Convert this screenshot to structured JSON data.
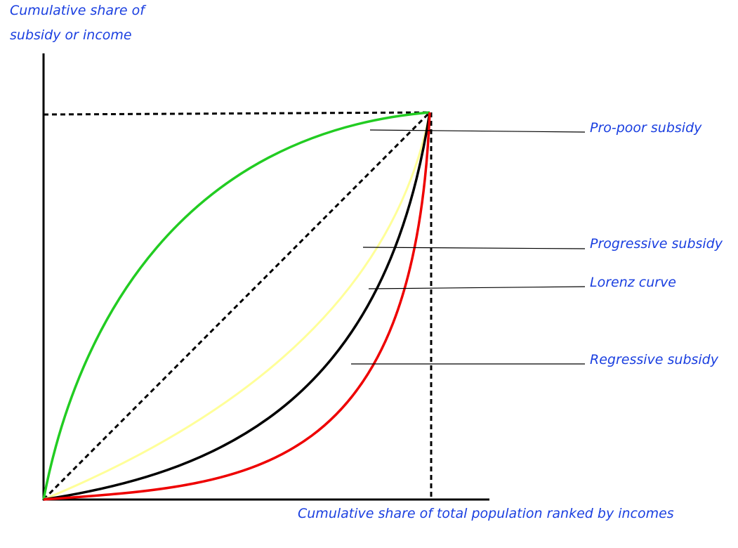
{
  "y_axis_label_lines": [
    "Cumulative share of",
    "subsidy or income"
  ],
  "x_axis_label": "Cumulative share of total population ranked by incomes",
  "curves": [
    {
      "id": "pro-poor",
      "label": "Pro-poor subsidy",
      "color": "#22cc22"
    },
    {
      "id": "progressive",
      "label": "Progressive subsidy",
      "color": "#ffff99"
    },
    {
      "id": "lorenz",
      "label": "Lorenz curve",
      "color": "#000000"
    },
    {
      "id": "regressive",
      "label": "Regressive subsidy",
      "color": "#ee0000"
    }
  ],
  "axis_color": "#000000",
  "label_color": "#1a3fe0"
}
